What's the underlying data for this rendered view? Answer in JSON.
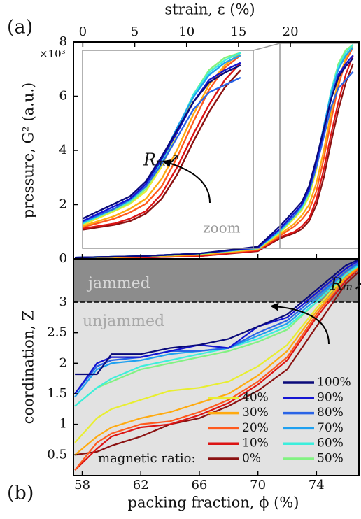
{
  "chart_data": [
    {
      "type": "line",
      "panel": "(a)",
      "ylabel": "pressure, G² (a.u.)",
      "y_multiplier": "×10³",
      "x2label": "strain, ε (%)",
      "x2lim": [
        -0.9,
        26.6
      ],
      "x2ticks": [
        0,
        5,
        10,
        15,
        20
      ],
      "x": [
        57.5,
        62,
        66,
        70,
        71.5,
        72.5,
        73,
        73.5,
        74,
        74.5,
        75,
        75.5,
        76,
        76.5
      ],
      "xlim": [
        57.4,
        76.9
      ],
      "ylim": [
        0,
        8
      ],
      "yticks": [
        0,
        2,
        4,
        6,
        8
      ],
      "inset": {
        "xlim": [
          71.5,
          76.9
        ],
        "label": "zoom"
      },
      "annotation": "Rₘ↗",
      "series": [
        {
          "values": [
            0.05,
            0.1,
            0.2,
            0.45,
            1.2,
            1.8,
            2.1,
            2.7,
            3.7,
            4.8,
            5.9,
            6.7,
            7.1,
            7.4
          ]
        },
        {
          "values": [
            0.05,
            0.1,
            0.2,
            0.42,
            1.1,
            1.7,
            2.0,
            2.6,
            3.6,
            4.7,
            5.9,
            6.8,
            7.2,
            7.5
          ]
        },
        {
          "values": [
            0.05,
            0.1,
            0.2,
            0.4,
            1.1,
            1.6,
            2.0,
            2.5,
            3.4,
            4.5,
            5.6,
            6.3,
            6.6,
            6.9
          ]
        },
        {
          "values": [
            0.05,
            0.1,
            0.2,
            0.4,
            1.05,
            1.6,
            1.95,
            2.5,
            3.6,
            4.9,
            6.1,
            7.0,
            7.5,
            7.8
          ]
        },
        {
          "values": [
            0.05,
            0.1,
            0.2,
            0.4,
            1.0,
            1.6,
            1.9,
            2.5,
            3.5,
            4.8,
            6.2,
            7.1,
            7.6,
            7.9
          ]
        },
        {
          "values": [
            0.05,
            0.1,
            0.18,
            0.38,
            1.0,
            1.55,
            1.85,
            2.4,
            3.4,
            4.8,
            6.2,
            7.2,
            7.7,
            7.9
          ]
        },
        {
          "values": [
            0.04,
            0.09,
            0.18,
            0.38,
            0.95,
            1.5,
            1.8,
            2.3,
            3.3,
            4.7,
            6.1,
            7.2,
            7.7,
            7.9
          ]
        },
        {
          "values": [
            0.03,
            0.08,
            0.15,
            0.35,
            0.9,
            1.3,
            1.6,
            2.0,
            2.8,
            4.0,
            5.4,
            6.6,
            7.4,
            7.9
          ]
        },
        {
          "values": [
            0.03,
            0.07,
            0.14,
            0.33,
            0.85,
            1.2,
            1.45,
            1.8,
            2.5,
            3.7,
            5.1,
            6.4,
            7.3,
            7.8
          ]
        },
        {
          "values": [
            0.02,
            0.05,
            0.1,
            0.3,
            0.8,
            1.0,
            1.2,
            1.5,
            2.2,
            3.3,
            4.6,
            5.8,
            6.8,
            7.5
          ]
        },
        {
          "values": [
            0.02,
            0.05,
            0.1,
            0.28,
            0.75,
            0.95,
            1.1,
            1.4,
            2.0,
            3.0,
            4.3,
            5.5,
            6.5,
            7.2
          ]
        }
      ]
    },
    {
      "type": "line",
      "panel": "(b)",
      "xlabel": "packing fraction, ϕ (%)",
      "ylabel": "coordination, Z",
      "x": [
        57.5,
        59,
        60,
        62,
        64,
        66,
        68,
        70,
        72,
        74,
        76,
        76.9
      ],
      "xlim": [
        57.4,
        76.9
      ],
      "xticks": [
        58,
        62,
        66,
        70,
        74
      ],
      "ylim": [
        0.16,
        3.71
      ],
      "yticks": [
        0.5,
        1,
        1.5,
        2,
        2.5,
        3
      ],
      "threshold": 3,
      "regions": [
        "jammed",
        "unjammed"
      ],
      "annotation": "Rₘ↗",
      "legend_title": "magnetic ratio:",
      "series": [
        {
          "name": "100%",
          "color": "#0a0a7a",
          "values": [
            1.82,
            1.82,
            2.15,
            2.15,
            2.25,
            2.3,
            2.4,
            2.6,
            2.8,
            3.2,
            3.6,
            3.7
          ]
        },
        {
          "name": "90%",
          "color": "#1414d2",
          "values": [
            1.5,
            2.0,
            2.1,
            2.1,
            2.2,
            2.3,
            2.25,
            2.6,
            2.75,
            3.15,
            3.55,
            3.68
          ]
        },
        {
          "name": "80%",
          "color": "#2a64e6",
          "values": [
            1.5,
            1.95,
            2.05,
            2.1,
            2.2,
            2.2,
            2.25,
            2.5,
            2.7,
            3.1,
            3.5,
            3.65
          ]
        },
        {
          "name": "70%",
          "color": "#1ea0f0",
          "values": [
            1.45,
            1.9,
            2.0,
            2.05,
            2.15,
            2.2,
            2.25,
            2.45,
            2.65,
            3.05,
            3.5,
            3.62
          ]
        },
        {
          "name": "60%",
          "color": "#3ceedc",
          "values": [
            1.3,
            1.6,
            1.75,
            1.95,
            2.05,
            2.15,
            2.25,
            2.4,
            2.6,
            3.0,
            3.45,
            3.6
          ]
        },
        {
          "name": "50%",
          "color": "#82f282",
          "values": [
            1.3,
            1.6,
            1.7,
            1.9,
            2.0,
            2.1,
            2.2,
            2.35,
            2.55,
            3.0,
            3.45,
            3.6
          ]
        },
        {
          "name": "40%",
          "color": "#e8ee30",
          "values": [
            0.7,
            1.1,
            1.25,
            1.4,
            1.55,
            1.6,
            1.7,
            1.95,
            2.3,
            2.9,
            3.45,
            3.6
          ]
        },
        {
          "name": "30%",
          "color": "#ffaa10",
          "values": [
            0.5,
            0.8,
            0.95,
            1.1,
            1.2,
            1.35,
            1.5,
            1.8,
            2.2,
            2.85,
            3.4,
            3.58
          ]
        },
        {
          "name": "20%",
          "color": "#ff5a1e",
          "values": [
            0.25,
            0.7,
            0.85,
            1.0,
            1.05,
            1.2,
            1.4,
            1.7,
            2.1,
            2.8,
            3.4,
            3.55
          ]
        },
        {
          "name": "10%",
          "color": "#dc1414",
          "values": [
            0.25,
            0.6,
            0.8,
            0.95,
            1.0,
            1.15,
            1.35,
            1.65,
            2.05,
            2.75,
            3.35,
            3.55
          ]
        },
        {
          "name": "0%",
          "color": "#8b1212",
          "values": [
            0.5,
            0.55,
            0.65,
            0.8,
            1.0,
            1.1,
            1.3,
            1.55,
            1.9,
            2.6,
            3.3,
            3.5
          ]
        }
      ]
    }
  ]
}
